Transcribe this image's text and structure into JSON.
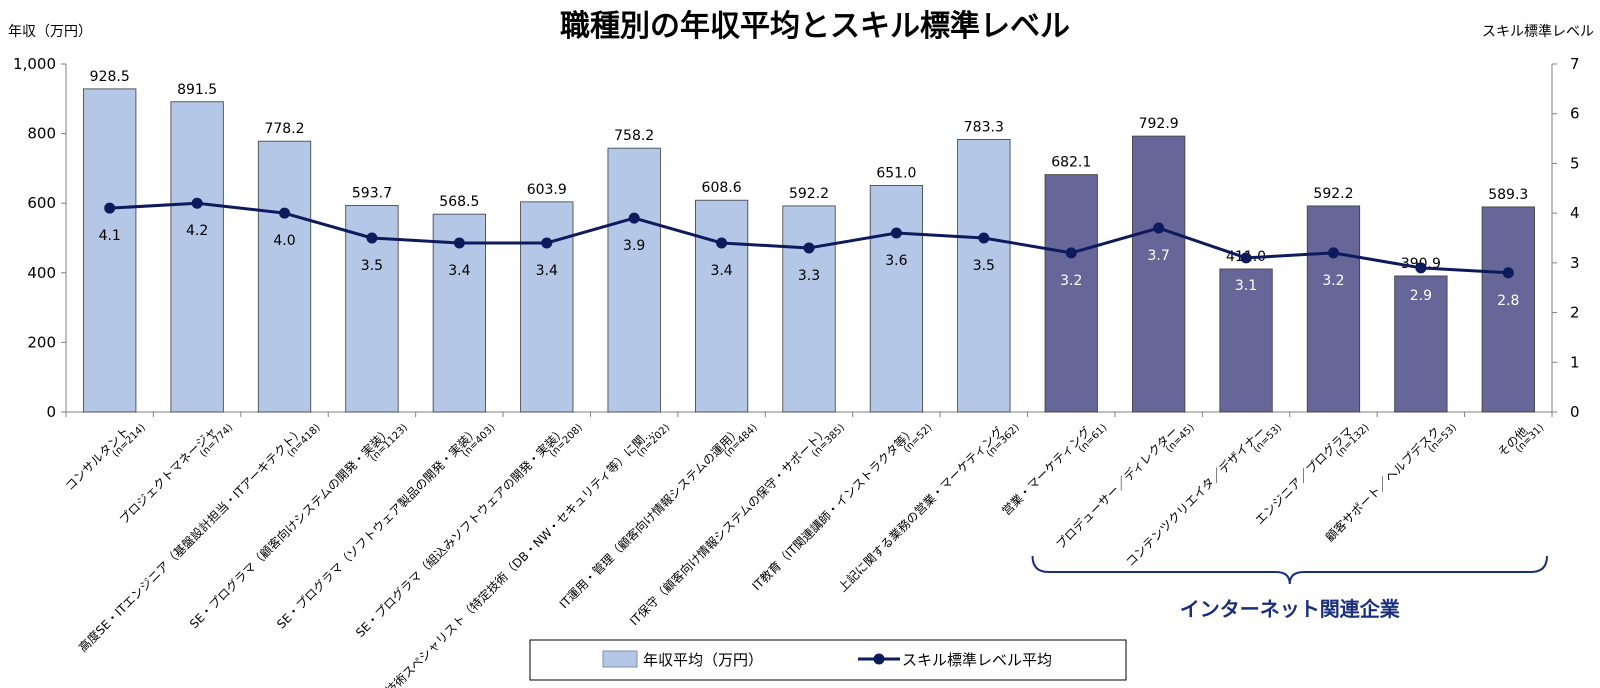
{
  "colors": {
    "bar_light": "#b4c7e7",
    "bar_dark": "#666699",
    "line": "#0d1a5c",
    "bracket": "#1a2f7a"
  },
  "chart_data": {
    "type": "bar",
    "title": "職種別の年収平均とスキル標準レベル",
    "ylabel": "年収（万円）",
    "y2label": "スキル標準レベル",
    "ylim": [
      0,
      1000
    ],
    "y_ticks": [
      "0",
      "200",
      "400",
      "600",
      "800",
      "1,000"
    ],
    "y2lim": [
      0,
      7
    ],
    "y2_ticks": [
      "0",
      "1",
      "2",
      "3",
      "4",
      "5",
      "6",
      "7"
    ],
    "categories": [
      "コンサルタント",
      "プロジェクトマネージャ",
      "高度SE・ITエンジニア（基盤設計担当・ITアーキテクト）",
      "SE・プログラマ（顧客向けシステムの開発・実装）",
      "SE・プログラマ（ソフトウェア製品の開発・実装）",
      "SE・プログラマ（組込みソフトウェアの開発・実装）",
      "IT技術スペシャリスト（特定技術（DB・NW・セキュリティ等）に関…",
      "IT運用・管理（顧客向け情報システムの運用）",
      "IT保守（顧客向け情報システムの保守・サポート）",
      "IT教育（IT関連講師・インストラクタ等）",
      "上記に関する業務の営業・マーケティング",
      "営業・マーケティング",
      "プロデューサー／ディレクター",
      "コンテンツクリエイタ／デザイナー",
      "エンジニア／プログラマ",
      "顧客サポート／ヘルプデスク",
      "その他"
    ],
    "n_labels": [
      "(n=214)",
      "(n=774)",
      "(n=418)",
      "(n=1123)",
      "(n=403)",
      "(n=208)",
      "(n=202)",
      "(n=484)",
      "(n=385)",
      "(n=52)",
      "(n=362)",
      "(n=61)",
      "(n=45)",
      "(n=53)",
      "(n=132)",
      "(n=53)",
      "(n=31)"
    ],
    "series": [
      {
        "name": "年収平均（万円）",
        "type": "bar",
        "axis": "left",
        "values": [
          928.5,
          891.5,
          778.2,
          593.7,
          568.5,
          603.9,
          758.2,
          608.6,
          592.2,
          651.0,
          783.3,
          682.1,
          792.9,
          411.0,
          592.2,
          390.9,
          589.3
        ],
        "labels": [
          "928.5",
          "891.5",
          "778.2",
          "593.7",
          "568.5",
          "603.9",
          "758.2",
          "608.6",
          "592.2",
          "651.0",
          "783.3",
          "682.1",
          "792.9",
          "411.0",
          "592.2",
          "390.9",
          "589.3"
        ]
      },
      {
        "name": "スキル標準レベル平均",
        "type": "line",
        "axis": "right",
        "values": [
          4.1,
          4.2,
          4.0,
          3.5,
          3.4,
          3.4,
          3.9,
          3.4,
          3.3,
          3.6,
          3.5,
          3.2,
          3.7,
          3.1,
          3.2,
          2.9,
          2.8
        ],
        "labels": [
          "4.1",
          "4.2",
          "4.0",
          "3.5",
          "3.4",
          "3.4",
          "3.9",
          "3.4",
          "3.3",
          "3.6",
          "3.5",
          "3.2",
          "3.7",
          "3.1",
          "3.2",
          "2.9",
          "2.8"
        ]
      }
    ],
    "group": {
      "label": "インターネット関連企業",
      "start_index": 11,
      "end_index": 16
    },
    "legend": {
      "position": "bottom",
      "items": [
        "年収平均（万円）",
        "スキル標準レベル平均"
      ]
    }
  }
}
